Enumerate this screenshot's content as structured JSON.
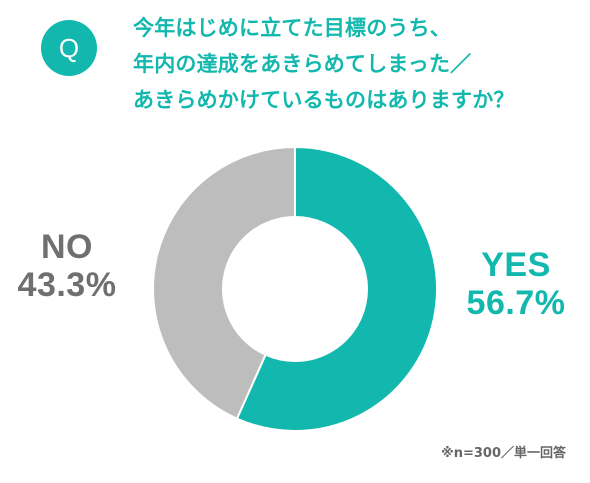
{
  "badge": {
    "letter": "Q"
  },
  "question": {
    "lines": [
      "今年はじめに立てた目標のうち、",
      "年内の達成をあきらめてしまった／",
      "あきらめかけているものはありますか？"
    ]
  },
  "chart_data": {
    "type": "pie",
    "donut": true,
    "title": "今年はじめに立てた目標のうち、年内の達成をあきらめてしまった／あきらめかけているものはありますか？",
    "categories": [
      "YES",
      "NO"
    ],
    "values": [
      56.7,
      43.3
    ],
    "unit": "%",
    "value_labels": [
      "56.7%",
      "43.3%"
    ],
    "colors": [
      "#12b8ad",
      "#bdbdbd"
    ],
    "start_angle_deg": 0,
    "direction": "clockwise",
    "legend": "none"
  },
  "note": "※n=300／単一回答"
}
